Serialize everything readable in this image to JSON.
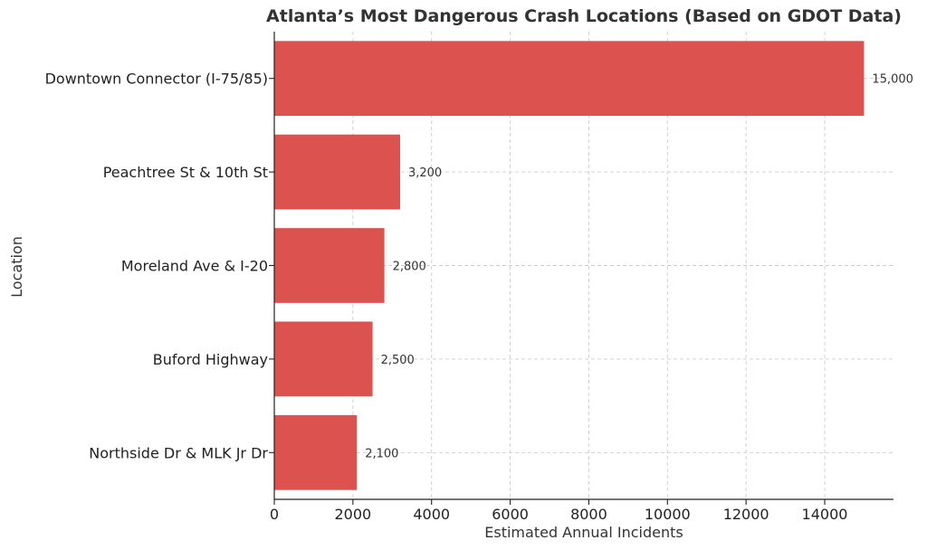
{
  "chart_data": {
    "type": "bar",
    "orientation": "horizontal",
    "title": "Atlanta’s Most Dangerous Crash Locations (Based on GDOT Data)",
    "xlabel": "Estimated Annual Incidents",
    "ylabel": "Location",
    "categories": [
      "Downtown Connector (I-75/85)",
      "Peachtree St & 10th St",
      "Moreland Ave & I-20",
      "Buford Highway",
      "Northside Dr & MLK Jr Dr"
    ],
    "values": [
      15000,
      3200,
      2800,
      2500,
      2100
    ],
    "data_labels": [
      "15,000",
      "3,200",
      "2,800",
      "2,500",
      "2,100"
    ],
    "xlim": [
      0,
      15750
    ],
    "xticks": [
      0,
      2000,
      4000,
      6000,
      8000,
      10000,
      12000,
      14000
    ],
    "xtick_labels": [
      "0",
      "2000",
      "4000",
      "6000",
      "8000",
      "10000",
      "12000",
      "14000"
    ],
    "grid": true,
    "bar_color": "#dc524e"
  }
}
